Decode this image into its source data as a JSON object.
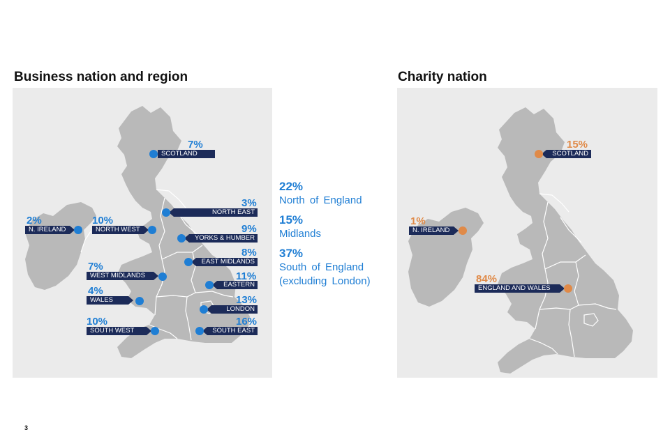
{
  "business": {
    "title": "Business nation and region",
    "regions": [
      {
        "id": "scotland",
        "label": "SCOTLAND",
        "value": "7%"
      },
      {
        "id": "north-east",
        "label": "NORTH EAST",
        "value": "3%"
      },
      {
        "id": "n-ireland",
        "label": "N. IRELAND",
        "value": "2%"
      },
      {
        "id": "north-west",
        "label": "NORTH WEST",
        "value": "10%"
      },
      {
        "id": "yorks-humber",
        "label": "YORKS & HUMBER",
        "value": "9%"
      },
      {
        "id": "east-midlands",
        "label": "EAST MIDLANDS",
        "value": "8%"
      },
      {
        "id": "west-midlands",
        "label": "WEST MIDLANDS",
        "value": "7%"
      },
      {
        "id": "eastern",
        "label": "EASTERN",
        "value": "11%"
      },
      {
        "id": "wales",
        "label": "WALES",
        "value": "4%"
      },
      {
        "id": "london",
        "label": "LONDON",
        "value": "13%"
      },
      {
        "id": "south-west",
        "label": "SOUTH WEST",
        "value": "10%"
      },
      {
        "id": "south-east",
        "label": "SOUTH EAST",
        "value": "16%"
      }
    ],
    "summary": [
      {
        "value": "22%",
        "label": [
          "North of England"
        ]
      },
      {
        "value": "15%",
        "label": [
          "Midlands"
        ]
      },
      {
        "value": "37%",
        "label": [
          "South of England",
          "(excluding London)"
        ]
      }
    ]
  },
  "charity": {
    "title": "Charity nation",
    "regions": [
      {
        "id": "scotland",
        "label": "SCOTLAND",
        "value": "15%"
      },
      {
        "id": "n-ireland",
        "label": "N. IRELAND",
        "value": "1%"
      },
      {
        "id": "england-wales",
        "label": "ENGLAND AND WALES",
        "value": "84%"
      }
    ]
  },
  "page_number": "3",
  "colors": {
    "business_accent": "#1f7ed4",
    "charity_accent": "#e08a48",
    "label_bar": "#1c2b59",
    "map_land": "#b9b9b9",
    "panel_bg": "#ebebeb"
  }
}
